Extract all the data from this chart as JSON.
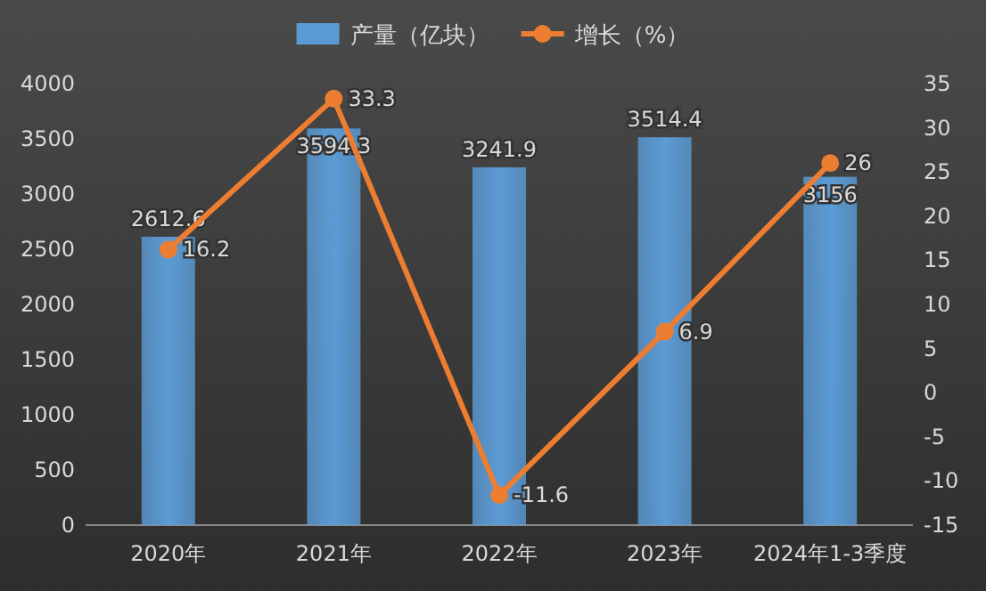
{
  "chart_data": {
    "type": "bar",
    "categories": [
      "2020年",
      "2021年",
      "2022年",
      "2023年",
      "2024年1-3季度"
    ],
    "series": [
      {
        "name": "产量（亿块）",
        "color": "#5b9bd5",
        "values": [
          2612.6,
          3594.3,
          3241.9,
          3514.4,
          3156
        ]
      },
      {
        "name": "增长（%）",
        "type": "line",
        "axis": "y2",
        "marker": "circle",
        "color": "#ed7d31",
        "values": [
          16.2,
          33.3,
          -11.6,
          6.9,
          26
        ]
      }
    ],
    "ylim": [
      0,
      4000
    ],
    "yticks": [
      0,
      500,
      1000,
      1500,
      2000,
      2500,
      3000,
      3500,
      4000
    ],
    "y2lim": [
      -15,
      35
    ],
    "y2ticks": [
      -15,
      -10,
      -5,
      0,
      5,
      10,
      15,
      20,
      25,
      30,
      35
    ],
    "legend": "top",
    "data_labels": true
  }
}
